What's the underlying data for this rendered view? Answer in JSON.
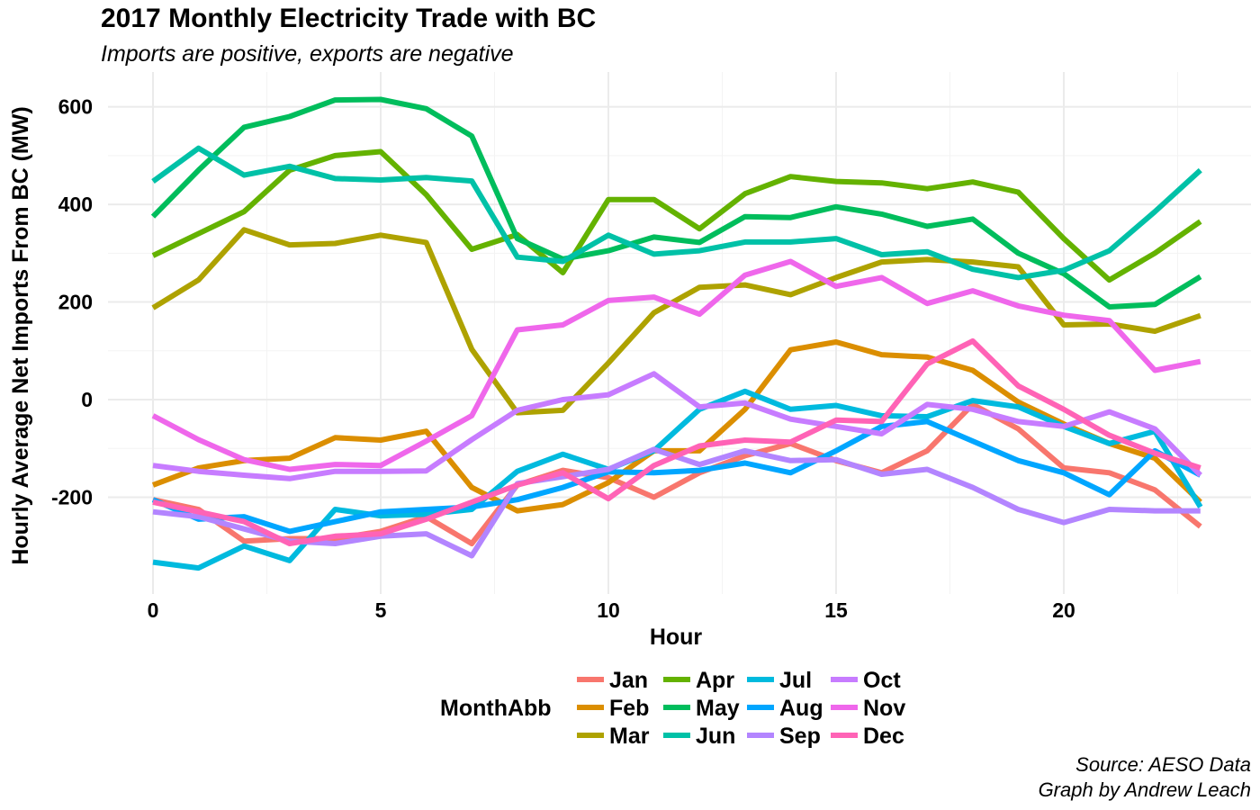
{
  "title": "2017 Monthly Electricity Trade with BC",
  "subtitle": "Imports are positive, exports are negative",
  "caption": {
    "line1": "Source: AESO Data",
    "line2": "Graph by Andrew Leach"
  },
  "chart_data": {
    "type": "line",
    "xlabel": "Hour",
    "ylabel": "Hourly Average Net Imports From BC (MW)",
    "xlim": [
      -1,
      23.5
    ],
    "ylim": [
      -345,
      615
    ],
    "x_ticks": [
      0,
      5,
      10,
      15,
      20
    ],
    "y_ticks": [
      -200,
      0,
      200,
      400,
      600
    ],
    "grid": true,
    "legend": {
      "title": "MonthAbb",
      "position": "bottom"
    },
    "x": [
      0,
      1,
      2,
      3,
      4,
      5,
      6,
      7,
      8,
      9,
      10,
      11,
      12,
      13,
      14,
      15,
      16,
      17,
      18,
      19,
      20,
      21,
      22,
      23
    ],
    "series": [
      {
        "name": "Jan",
        "color": "#F8766D",
        "values": [
          -205,
          -225,
          -290,
          -285,
          -285,
          -270,
          -240,
          -295,
          -175,
          -145,
          -160,
          -200,
          -150,
          -115,
          -90,
          -125,
          -150,
          -105,
          -10,
          -60,
          -140,
          -150,
          -185,
          -260
        ]
      },
      {
        "name": "Feb",
        "color": "#DB8E00",
        "values": [
          -175,
          -140,
          -125,
          -120,
          -78,
          -83,
          -65,
          -180,
          -228,
          -215,
          -170,
          -105,
          -105,
          -20,
          102,
          118,
          92,
          87,
          60,
          -5,
          -50,
          -90,
          -120,
          -210
        ]
      },
      {
        "name": "Mar",
        "color": "#AEA200",
        "values": [
          188,
          245,
          348,
          317,
          320,
          337,
          322,
          103,
          -27,
          -22,
          75,
          178,
          230,
          235,
          215,
          250,
          282,
          287,
          282,
          272,
          153,
          155,
          140,
          172
        ]
      },
      {
        "name": "Apr",
        "color": "#64B200",
        "values": [
          295,
          340,
          385,
          470,
          500,
          508,
          420,
          308,
          338,
          260,
          410,
          410,
          350,
          422,
          457,
          447,
          444,
          432,
          446,
          425,
          330,
          245,
          300,
          365
        ]
      },
      {
        "name": "May",
        "color": "#00BD5C",
        "values": [
          375,
          470,
          558,
          580,
          614,
          615,
          596,
          540,
          330,
          288,
          305,
          333,
          322,
          375,
          373,
          395,
          380,
          355,
          370,
          300,
          258,
          190,
          195,
          252
        ]
      },
      {
        "name": "Jun",
        "color": "#00C1A7",
        "values": [
          447,
          515,
          460,
          478,
          453,
          450,
          455,
          448,
          292,
          283,
          337,
          298,
          305,
          323,
          323,
          330,
          297,
          303,
          267,
          250,
          265,
          305,
          385,
          470
        ]
      },
      {
        "name": "Jul",
        "color": "#00BADE",
        "values": [
          -333,
          -345,
          -300,
          -330,
          -225,
          -238,
          -235,
          -225,
          -147,
          -112,
          -143,
          -105,
          -20,
          17,
          -20,
          -12,
          -33,
          -35,
          -2,
          -15,
          -55,
          -90,
          -65,
          -220
        ]
      },
      {
        "name": "Aug",
        "color": "#00A6FF",
        "values": [
          -205,
          -245,
          -240,
          -270,
          -250,
          -230,
          -225,
          -220,
          -205,
          -180,
          -148,
          -150,
          -145,
          -130,
          -150,
          -105,
          -55,
          -45,
          -85,
          -125,
          -150,
          -195,
          -105,
          -155
        ]
      },
      {
        "name": "Sep",
        "color": "#B385FF",
        "values": [
          -230,
          -240,
          -265,
          -290,
          -295,
          -280,
          -275,
          -320,
          -172,
          -158,
          -143,
          -102,
          -133,
          -105,
          -125,
          -123,
          -153,
          -143,
          -180,
          -225,
          -252,
          -225,
          -228,
          -228
        ]
      },
      {
        "name": "Oct",
        "color": "#C77CFF",
        "values": [
          -135,
          -147,
          -155,
          -162,
          -147,
          -147,
          -146,
          -82,
          -22,
          0,
          10,
          53,
          -15,
          -7,
          -40,
          -55,
          -70,
          -10,
          -20,
          -45,
          -55,
          -25,
          -60,
          -155
        ]
      },
      {
        "name": "Nov",
        "color": "#EF67EB",
        "values": [
          -33,
          -82,
          -123,
          -143,
          -133,
          -135,
          -85,
          -33,
          143,
          153,
          203,
          210,
          175,
          255,
          283,
          232,
          250,
          197,
          223,
          192,
          173,
          162,
          60,
          78
        ]
      },
      {
        "name": "Dec",
        "color": "#FF63B6",
        "values": [
          -210,
          -230,
          -250,
          -295,
          -280,
          -275,
          -245,
          -210,
          -175,
          -150,
          -203,
          -135,
          -95,
          -83,
          -87,
          -42,
          -45,
          73,
          120,
          28,
          -20,
          -73,
          -110,
          -140
        ]
      }
    ]
  }
}
